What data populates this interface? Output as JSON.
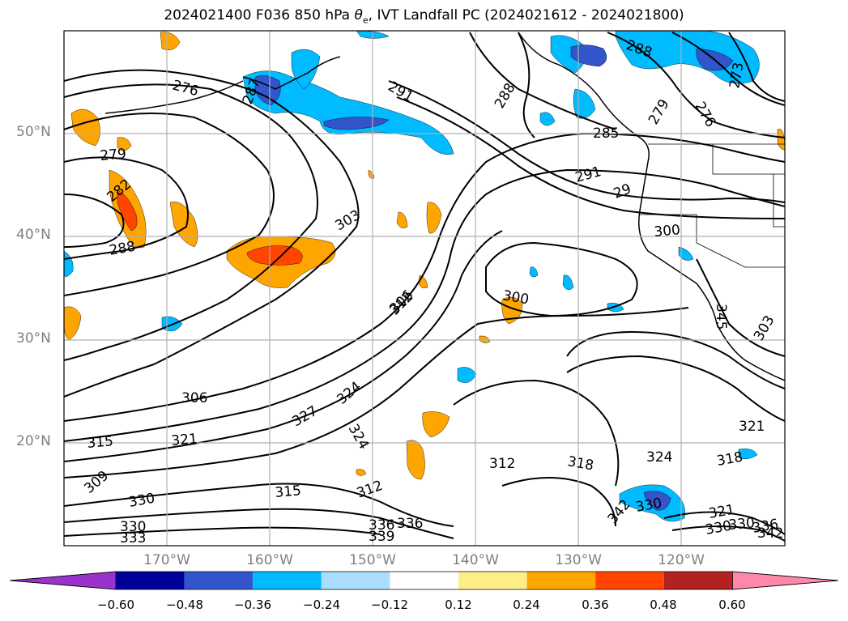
{
  "title": {
    "prefix": "2024021400 F036 850 hPa ",
    "symbol": "θ",
    "symbol_sub": "e",
    "suffix": ", IVT Landfall PC (2024021612 - 2024021800)"
  },
  "lat_labels": [
    "50°N",
    "40°N",
    "30°N",
    "20°N"
  ],
  "lon_labels": [
    "170°W",
    "160°W",
    "150°W",
    "140°W",
    "130°W",
    "120°W"
  ],
  "contour_labels": [
    "276",
    "279",
    "282",
    "288",
    "287",
    "291",
    "288",
    "288",
    "273",
    "276",
    "279",
    "285",
    "291",
    "29",
    "303",
    "300",
    "300",
    "312",
    "306",
    "324",
    "324",
    "327",
    "321",
    "315",
    "315",
    "312",
    "312",
    "318",
    "324",
    "318",
    "321",
    "309",
    "330",
    "330",
    "333",
    "336",
    "339",
    "336",
    "342",
    "330",
    "321",
    "330",
    "330",
    "336",
    "342",
    "345",
    "303",
    "306"
  ],
  "colorbar": {
    "ticks": [
      "−0.60",
      "−0.48",
      "−0.36",
      "−0.24",
      "−0.12",
      "0.12",
      "0.24",
      "0.36",
      "0.48",
      "0.60"
    ],
    "colors": [
      "#9933cc",
      "#000099",
      "#3355cc",
      "#00bbff",
      "#aaddff",
      "#ffffff",
      "#ffee88",
      "#ffa500",
      "#ff4500",
      "#b22222",
      "#ff88aa"
    ]
  }
}
